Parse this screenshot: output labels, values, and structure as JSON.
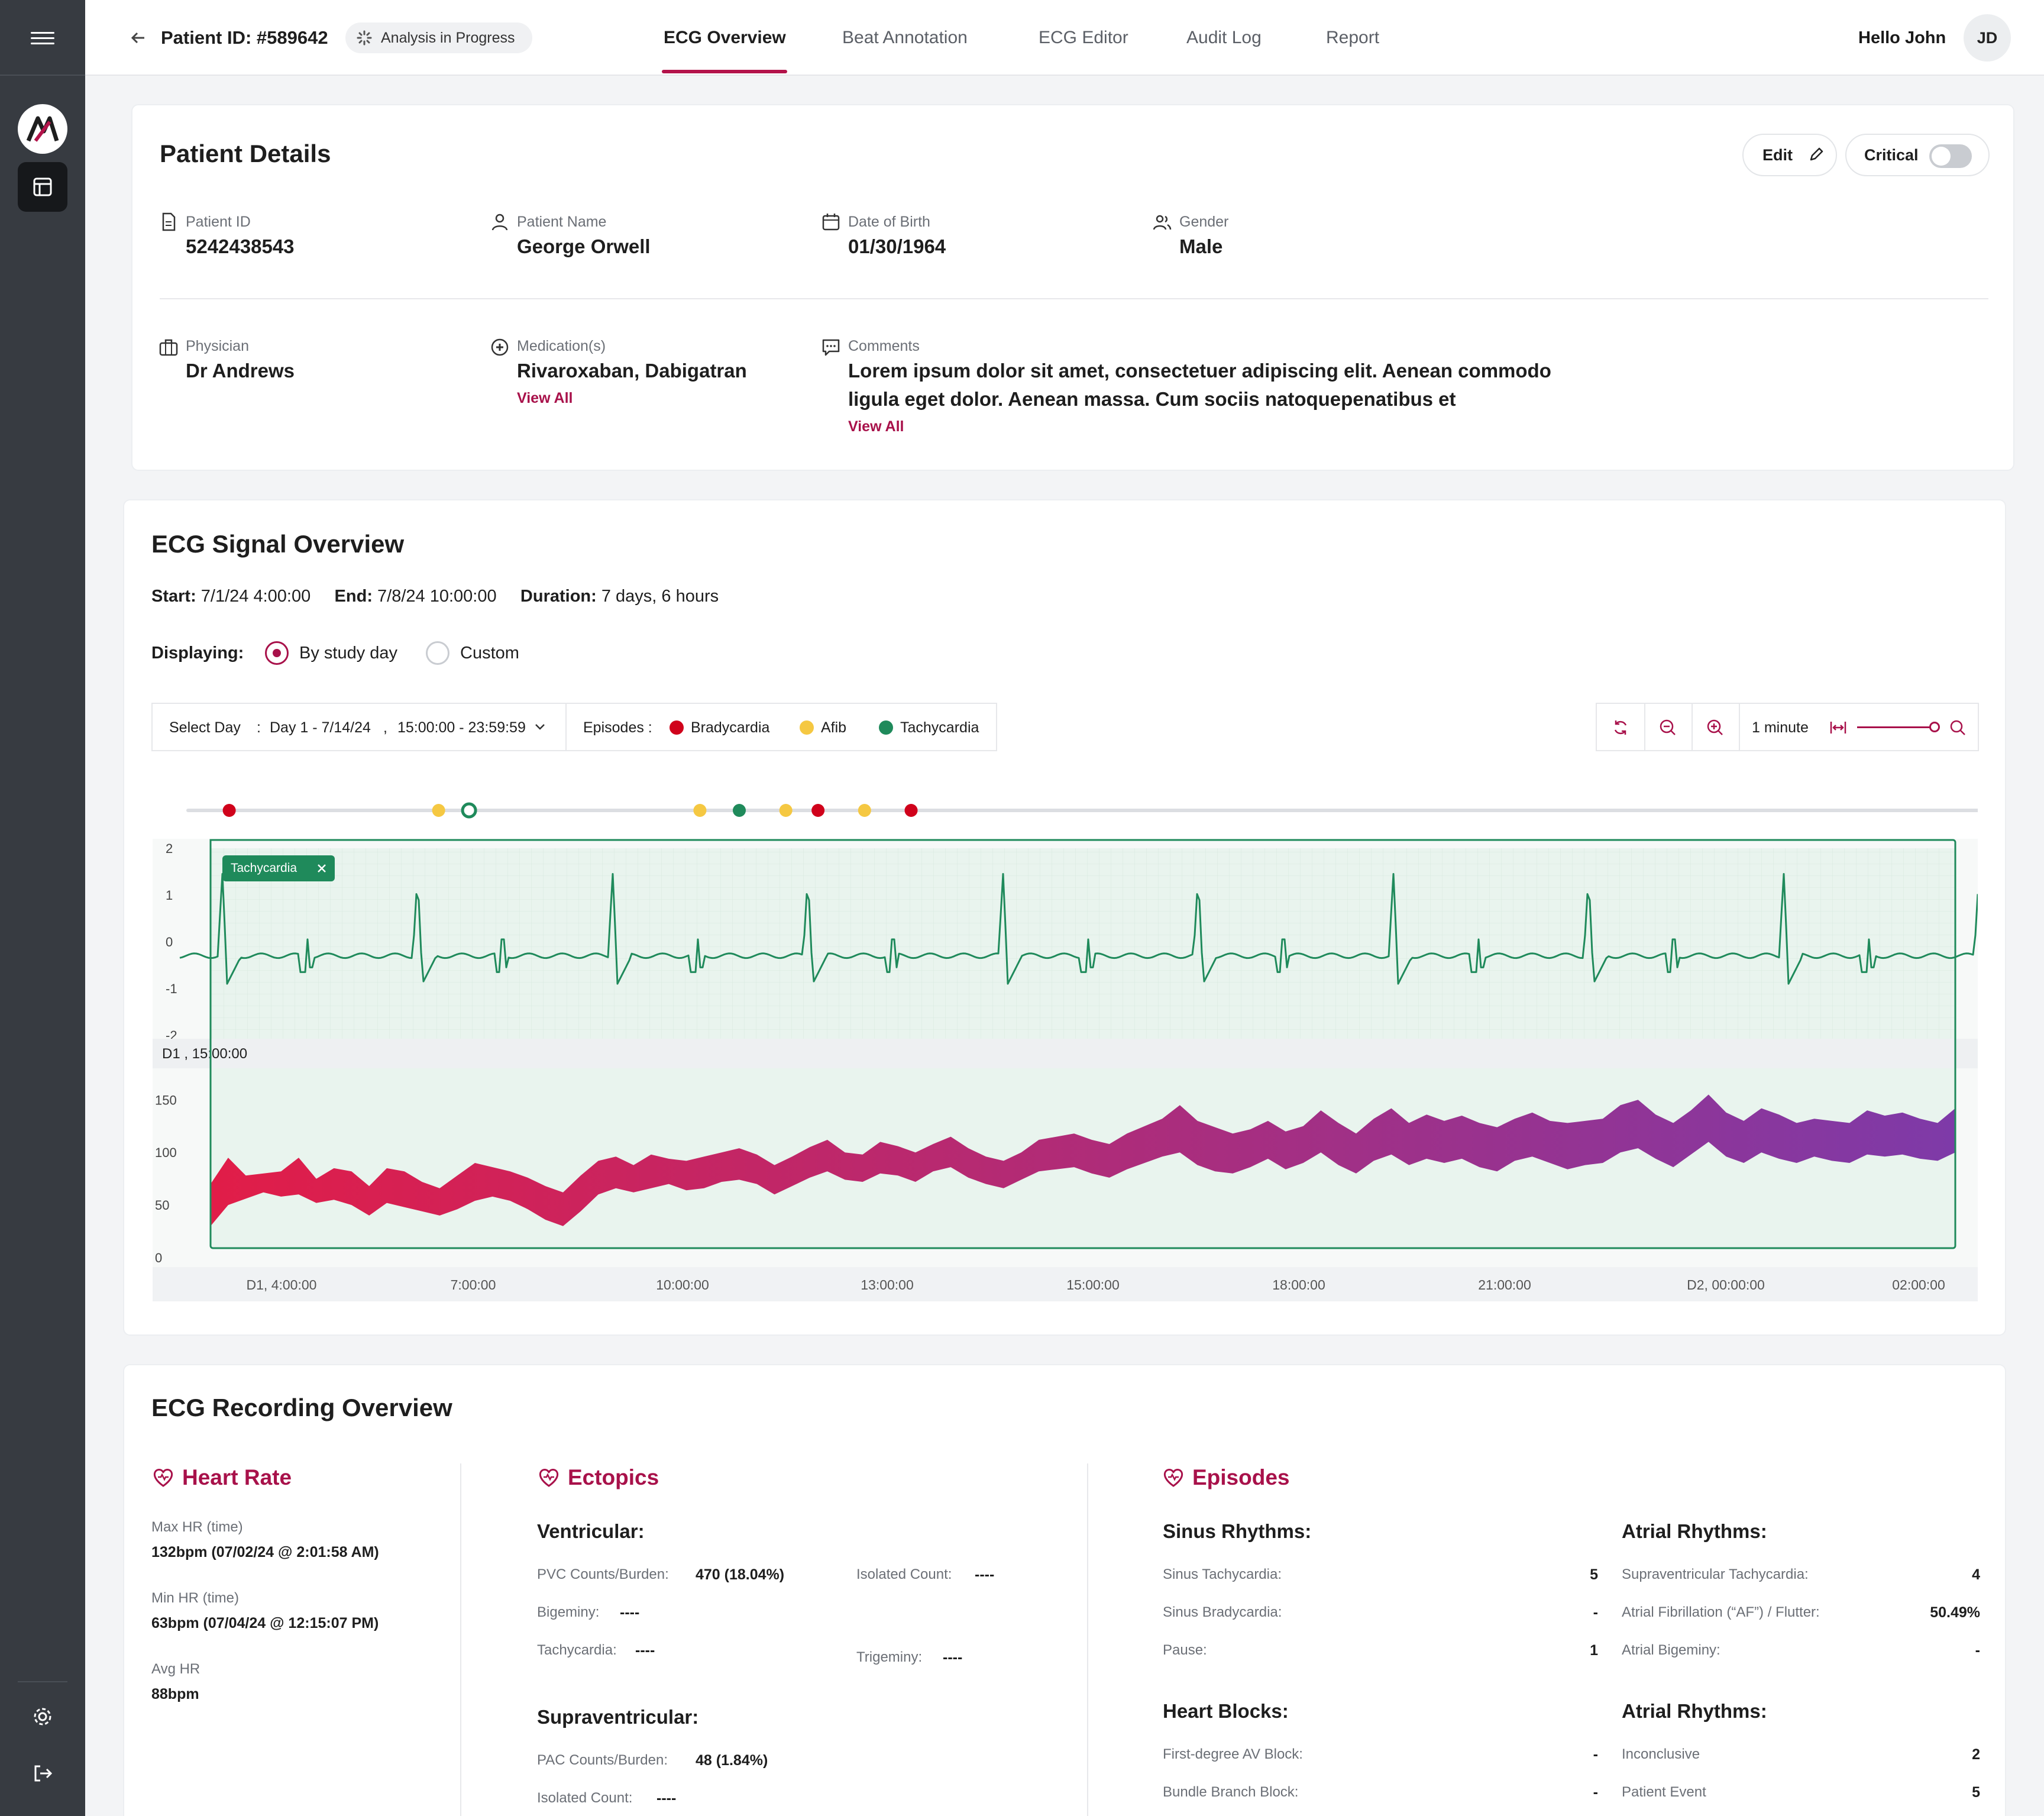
{
  "sidebar": {
    "logo_letter": "M"
  },
  "header": {
    "patient_id": "Patient ID: #589642",
    "status": "Analysis in Progress",
    "tabs": [
      {
        "label": "ECG Overview"
      },
      {
        "label": "Beat Annotation"
      },
      {
        "label": "ECG Editor"
      },
      {
        "label": "Audit Log"
      },
      {
        "label": "Report"
      }
    ],
    "greeting": "Hello John",
    "avatar_initials": "JD"
  },
  "patient_details": {
    "title": "Patient Details",
    "edit_label": "Edit",
    "critical_label": "Critical",
    "critical_on": false,
    "fields": {
      "patient_id": {
        "label": "Patient ID",
        "value": "5242438543"
      },
      "patient_name": {
        "label": "Patient Name",
        "value": "George Orwell"
      },
      "dob": {
        "label": "Date of Birth",
        "value": "01/30/1964"
      },
      "gender": {
        "label": "Gender",
        "value": "Male"
      },
      "physician": {
        "label": "Physician",
        "value": "Dr Andrews"
      },
      "medications": {
        "label": "Medication(s)",
        "value": "Rivaroxaban, Dabigatran",
        "link": "View All"
      },
      "comments": {
        "label": "Comments",
        "line1": "Lorem ipsum dolor sit amet, consectetuer adipiscing elit. Aenean commodo",
        "line2": "ligula eget dolor. Aenean massa. Cum sociis natoquepenatibus et",
        "link": "View All"
      }
    }
  },
  "ecg_signal": {
    "title": "ECG Signal Overview",
    "start_label": "Start:",
    "start_value": "7/1/24 4:00:00",
    "end_label": "End:",
    "end_value": "7/8/24 10:00:00",
    "duration_label": "Duration:",
    "duration_value": "7 days, 6 hours",
    "displaying_label": "Displaying:",
    "radio_study_day": "By study day",
    "radio_custom": "Custom",
    "selected_mode": "By study day",
    "select_day_label": "Select Day",
    "select_day_colon": ":",
    "day_value": "Day 1 - 7/14/24",
    "comma": ",",
    "time_range": "15:00:00 - 23:59:59",
    "episodes_label": "Episodes :",
    "episode_legend": [
      {
        "name": "Bradycardia",
        "color": "#d0021b"
      },
      {
        "name": "Afib",
        "color": "#f5c842"
      },
      {
        "name": "Tachycardia",
        "color": "#1f8a5b"
      }
    ],
    "zoom_label": "1 minute",
    "selected_episode_tag": "Tachycardia",
    "strip_label": "D1 , 15:00:00"
  },
  "chart_data": [
    {
      "type": "line",
      "title": "",
      "xlabel": "",
      "ylabel": "",
      "ylim": [
        -2,
        2
      ],
      "y_ticks": [
        "2",
        "1",
        "0",
        "-1",
        "-2"
      ],
      "waveform": "ECG",
      "color": "#1f8a5b",
      "episode_markers": [
        {
          "type": "Bradycardia",
          "color": "#d0021b",
          "t": 0.023
        },
        {
          "type": "Afib",
          "color": "#f5c842",
          "t": 0.14
        },
        {
          "type": "Tachycardia",
          "color": "#1f8a5b",
          "t": 0.157,
          "selected": true
        },
        {
          "type": "Afib",
          "color": "#f5c842",
          "t": 0.286
        },
        {
          "type": "Tachycardia",
          "color": "#1f8a5b",
          "t": 0.308
        },
        {
          "type": "Afib",
          "color": "#f5c842",
          "t": 0.334
        },
        {
          "type": "Bradycardia",
          "color": "#d0021b",
          "t": 0.352
        },
        {
          "type": "Afib",
          "color": "#f5c842",
          "t": 0.378
        },
        {
          "type": "Bradycardia",
          "color": "#d0021b",
          "t": 0.404
        }
      ]
    },
    {
      "type": "area",
      "title": "",
      "xlabel": "",
      "ylabel": "",
      "ylim": [
        0,
        180
      ],
      "y_ticks": [
        "150",
        "100",
        "50",
        "0"
      ],
      "x_ticks": [
        "D1, 4:00:00",
        "7:00:00",
        "10:00:00",
        "13:00:00",
        "15:00:00",
        "18:00:00",
        "21:00:00",
        "D2, 00:00:00",
        "02:00:00"
      ],
      "colors": [
        "#e11d48",
        "#7e3aa8"
      ],
      "series": [
        {
          "values_high": [
            70,
            95,
            78,
            80,
            82,
            95,
            75,
            85,
            82,
            68,
            85,
            82,
            72,
            66,
            78,
            90,
            86,
            82,
            76,
            68,
            62,
            78,
            92,
            96,
            88,
            98,
            94,
            92,
            96,
            100,
            104,
            98,
            88,
            96,
            105,
            112,
            100,
            98,
            110,
            106,
            100,
            108,
            115,
            104,
            96,
            92,
            100,
            112,
            115,
            118,
            112,
            108,
            118,
            125,
            132,
            145,
            130,
            124,
            118,
            122,
            130,
            120,
            125,
            140,
            128,
            118,
            132,
            142,
            128,
            136,
            130,
            135,
            128,
            124,
            132,
            138,
            130,
            128,
            130,
            132,
            145,
            150,
            136,
            128,
            140,
            155,
            138,
            130,
            142,
            136,
            128,
            132,
            130,
            128,
            140,
            135,
            138,
            132,
            128,
            142
          ],
          "values_low": [
            30,
            50,
            56,
            62,
            58,
            60,
            52,
            55,
            50,
            40,
            52,
            48,
            44,
            40,
            46,
            54,
            58,
            54,
            46,
            36,
            30,
            44,
            60,
            66,
            62,
            66,
            70,
            64,
            66,
            72,
            74,
            70,
            60,
            68,
            76,
            82,
            74,
            72,
            80,
            78,
            72,
            82,
            86,
            76,
            70,
            66,
            74,
            82,
            84,
            86,
            80,
            76,
            84,
            90,
            96,
            100,
            88,
            82,
            80,
            86,
            94,
            84,
            90,
            100,
            88,
            80,
            92,
            98,
            88,
            94,
            90,
            94,
            86,
            82,
            92,
            96,
            90,
            84,
            88,
            90,
            100,
            104,
            94,
            86,
            98,
            110,
            96,
            90,
            100,
            94,
            90,
            96,
            92,
            90,
            98,
            96,
            98,
            94,
            92,
            100
          ]
        }
      ]
    }
  ],
  "recording": {
    "title": "ECG Recording Overview",
    "heart_rate": {
      "title": "Heart Rate",
      "items": [
        {
          "label": "Max HR (time)",
          "value": "132bpm (07/02/24 @ 2:01:58 AM)"
        },
        {
          "label": "Min HR (time)",
          "value": "63bpm (07/04/24 @ 12:15:07 PM)"
        },
        {
          "label": "Avg HR",
          "value": "88bpm"
        }
      ]
    },
    "ectopics": {
      "title": "Ectopics",
      "ventricular_title": "Ventricular:",
      "pvc_label": "PVC Counts/Burden:",
      "pvc_value": "470 (18.04%)",
      "isolated_label": "Isolated Count:",
      "isolated_value": "----",
      "bigeminy_label": "Bigeminy:",
      "bigeminy_value": "----",
      "tachy_label": "Tachycardia:",
      "tachy_value": "----",
      "trigeminy_label": "Trigeminy:",
      "trigeminy_value": "----",
      "supra_title": "Supraventricular:",
      "pac_label": "PAC Counts/Burden:",
      "pac_value": "48 (1.84%)",
      "supra_isolated_label": "Isolated Count:",
      "supra_isolated_value": "----"
    },
    "episodes": {
      "title": "Episodes",
      "sinus_title": "Sinus Rhythms:",
      "sinus": [
        {
          "label": "Sinus Tachycardia:",
          "value": "5"
        },
        {
          "label": "Sinus Bradycardia:",
          "value": "-"
        },
        {
          "label": "Pause:",
          "value": "1"
        }
      ],
      "heart_blocks_title": "Heart Blocks:",
      "heart_blocks": [
        {
          "label": "First-degree AV Block:",
          "value": "-"
        },
        {
          "label": "Bundle Branch Block:",
          "value": "-"
        }
      ],
      "atrial_title": "Atrial Rhythms:",
      "atrial": [
        {
          "label": "Supraventricular Tachycardia:",
          "value": "4"
        },
        {
          "label": "Atrial Fibrillation (“AF”) / Flutter:",
          "value": "50.49%"
        },
        {
          "label": "Atrial Bigeminy:",
          "value": "-"
        }
      ],
      "atrial2_title": "Atrial Rhythms:",
      "atrial2": [
        {
          "label": "Inconclusive",
          "value": "2"
        },
        {
          "label": "Patient Event",
          "value": "5"
        }
      ]
    }
  }
}
